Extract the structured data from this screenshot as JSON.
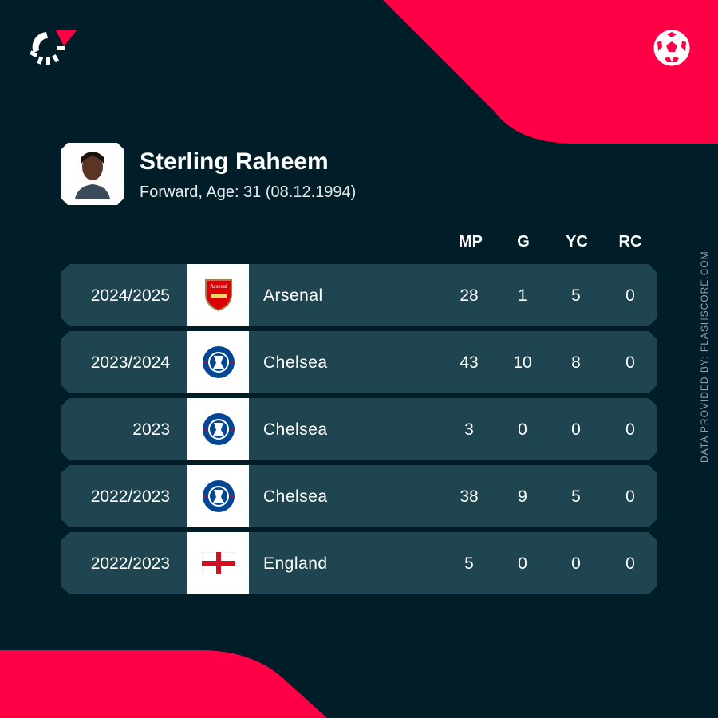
{
  "brand": {
    "accent": "#ff0046",
    "background": "#011e28",
    "row": "#1f4550",
    "logo_icon": "flashscore-logo-icon",
    "sport_icon": "football-icon"
  },
  "player": {
    "name": "Sterling Raheem",
    "details": "Forward, Age: 31 (08.12.1994)"
  },
  "columns": [
    "MP",
    "G",
    "YC",
    "RC"
  ],
  "rows": [
    {
      "season": "2024/2025",
      "team": "Arsenal",
      "crest": "arsenal",
      "mp": "28",
      "g": "1",
      "yc": "5",
      "rc": "0"
    },
    {
      "season": "2023/2024",
      "team": "Chelsea",
      "crest": "chelsea",
      "mp": "43",
      "g": "10",
      "yc": "8",
      "rc": "0"
    },
    {
      "season": "2023",
      "team": "Chelsea",
      "crest": "chelsea",
      "mp": "3",
      "g": "0",
      "yc": "0",
      "rc": "0"
    },
    {
      "season": "2022/2023",
      "team": "Chelsea",
      "crest": "chelsea",
      "mp": "38",
      "g": "9",
      "yc": "5",
      "rc": "0"
    },
    {
      "season": "2022/2023",
      "team": "England",
      "crest": "england",
      "mp": "5",
      "g": "0",
      "yc": "0",
      "rc": "0"
    }
  ],
  "credit": "DATA PROVIDED BY: FLASHSCORE.COM"
}
